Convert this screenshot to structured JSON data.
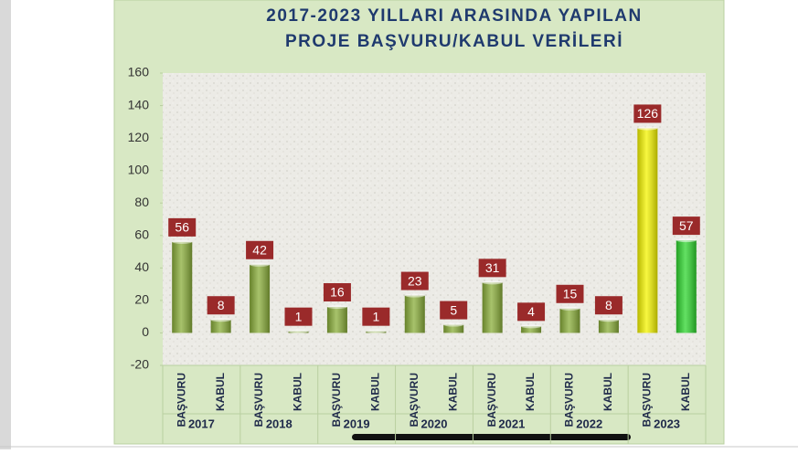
{
  "chart_data": {
    "type": "bar",
    "title": [
      "2017-2023 YILLARI ARASINDA YAPILAN",
      "PROJE BAŞVURU/KABUL VERİLERİ"
    ],
    "groups": [
      "2017",
      "2018",
      "2019",
      "2020",
      "2021",
      "2022",
      "2023"
    ],
    "categories": [
      "BAŞVURU",
      "KABUL",
      "BAŞVURU",
      "KABUL",
      "BAŞVURU",
      "KABUL",
      "BAŞVURU",
      "KABUL",
      "BAŞVURU",
      "KABUL",
      "BAŞVURU",
      "KABUL",
      "BAŞVURU",
      "KABUL"
    ],
    "values": [
      56,
      8,
      42,
      1,
      16,
      1,
      23,
      5,
      31,
      4,
      15,
      8,
      126,
      57
    ],
    "colors": [
      "#8aae3a",
      "#8aae3a",
      "#8aae3a",
      "#8aae3a",
      "#8aae3a",
      "#8aae3a",
      "#8aae3a",
      "#8aae3a",
      "#8aae3a",
      "#8aae3a",
      "#8aae3a",
      "#8aae3a",
      "#f5f500",
      "#2fd62f"
    ],
    "ylim": [
      -20,
      160
    ],
    "yticks": [
      -20,
      0,
      20,
      40,
      60,
      80,
      100,
      120,
      140,
      160
    ]
  }
}
